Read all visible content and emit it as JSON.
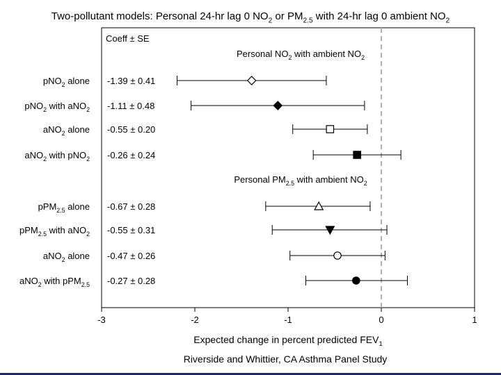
{
  "chart_data": {
    "type": "forest",
    "title": {
      "parts": [
        {
          "t": "Two-pollutant models: Personal 24-hr lag 0 NO"
        },
        {
          "t": "2",
          "sub": true
        },
        {
          "t": " or PM"
        },
        {
          "t": "2.5",
          "sub": true
        },
        {
          "t": " with 24-hr lag 0 ambient NO"
        },
        {
          "t": "2",
          "sub": true
        }
      ]
    },
    "column_header": "Coeff ± SE",
    "xlabel": {
      "parts": [
        {
          "t": "Expected change in percent predicted FEV"
        },
        {
          "t": "1",
          "sub": true
        }
      ]
    },
    "xlim": [
      -3,
      1
    ],
    "xticks": [
      -3,
      -2,
      -1,
      0,
      1
    ],
    "reference_line_x": 0,
    "groups": [
      {
        "label": {
          "parts": [
            {
              "t": "Personal NO"
            },
            {
              "t": "2",
              "sub": true
            },
            {
              "t": " with ambient NO"
            },
            {
              "t": "2",
              "sub": true
            }
          ]
        },
        "rows": [
          {
            "label": {
              "parts": [
                {
                  "t": "pNO"
                },
                {
                  "t": "2",
                  "sub": true
                },
                {
                  "t": " alone"
                }
              ]
            },
            "coeff_text": "-1.39 ± 0.41",
            "estimate": -1.39,
            "ci": [
              -2.19,
              -0.59
            ],
            "marker": "diamond-open"
          },
          {
            "label": {
              "parts": [
                {
                  "t": "pNO"
                },
                {
                  "t": "2",
                  "sub": true
                },
                {
                  "t": " with aNO"
                },
                {
                  "t": "2",
                  "sub": true
                }
              ]
            },
            "coeff_text": "-1.11 ± 0.48",
            "estimate": -1.11,
            "ci": [
              -2.04,
              -0.18
            ],
            "marker": "diamond-filled"
          },
          {
            "label": {
              "parts": [
                {
                  "t": "aNO"
                },
                {
                  "t": "2",
                  "sub": true
                },
                {
                  "t": " alone"
                }
              ]
            },
            "coeff_text": "-0.55 ± 0.20",
            "estimate": -0.55,
            "ci": [
              -0.95,
              -0.15
            ],
            "marker": "square-open"
          },
          {
            "label": {
              "parts": [
                {
                  "t": "aNO"
                },
                {
                  "t": "2",
                  "sub": true
                },
                {
                  "t": " with pNO"
                },
                {
                  "t": "2",
                  "sub": true
                }
              ]
            },
            "coeff_text": "-0.26 ± 0.24",
            "estimate": -0.26,
            "ci": [
              -0.73,
              0.21
            ],
            "marker": "square-filled"
          }
        ]
      },
      {
        "label": {
          "parts": [
            {
              "t": "Personal PM"
            },
            {
              "t": "2.5",
              "sub": true
            },
            {
              "t": " with ambient NO"
            },
            {
              "t": "2",
              "sub": true
            }
          ]
        },
        "rows": [
          {
            "label": {
              "parts": [
                {
                  "t": "pPM"
                },
                {
                  "t": "2.5",
                  "sub": true
                },
                {
                  "t": " alone"
                }
              ]
            },
            "coeff_text": "-0.67 ± 0.28",
            "estimate": -0.67,
            "ci": [
              -1.24,
              -0.12
            ],
            "marker": "triangle-up-open"
          },
          {
            "label": {
              "parts": [
                {
                  "t": "pPM"
                },
                {
                  "t": "2.5",
                  "sub": true
                },
                {
                  "t": " with aNO"
                },
                {
                  "t": "2",
                  "sub": true
                }
              ]
            },
            "coeff_text": "-0.55 ± 0.31",
            "estimate": -0.55,
            "ci": [
              -1.17,
              0.06
            ],
            "marker": "triangle-down-filled"
          },
          {
            "label": {
              "parts": [
                {
                  "t": "aNO"
                },
                {
                  "t": "2",
                  "sub": true
                },
                {
                  "t": " alone"
                }
              ]
            },
            "coeff_text": "-0.47 ± 0.26",
            "estimate": -0.47,
            "ci": [
              -0.98,
              0.04
            ],
            "marker": "circle-open"
          },
          {
            "label": {
              "parts": [
                {
                  "t": "aNO"
                },
                {
                  "t": "2",
                  "sub": true
                },
                {
                  "t": " with pPM"
                },
                {
                  "t": "2.5",
                  "sub": true
                }
              ]
            },
            "coeff_text": "-0.27 ± 0.28",
            "estimate": -0.27,
            "ci": [
              -0.81,
              0.28
            ],
            "marker": "circle-filled"
          }
        ]
      }
    ],
    "grid": false,
    "legend": "none"
  },
  "footer": "Riverside and Whittier, CA Asthma Panel Study",
  "colors": {
    "reference_line": "#b0b0b0",
    "ink": "#000000",
    "bottom_rule": "#1a2a6c"
  }
}
